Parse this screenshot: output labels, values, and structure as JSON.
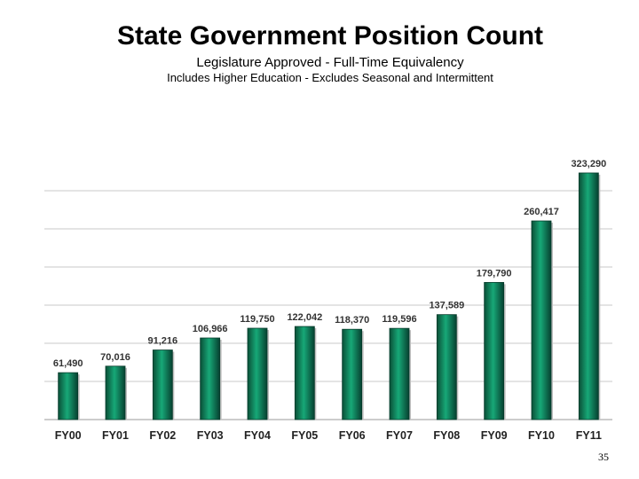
{
  "chart_data": {
    "type": "bar",
    "title": "State Government Position Count",
    "subtitle": "Legislature Approved  -  Full-Time Equivalency",
    "note": "Includes Higher Education  -  Excludes Seasonal and Intermittent",
    "categories": [
      "FY00",
      "FY01",
      "FY02",
      "FY03",
      "FY04",
      "FY05",
      "FY06",
      "FY07",
      "FY08",
      "FY09",
      "FY10",
      "FY11"
    ],
    "values": [
      61490,
      70016,
      91216,
      106966,
      119750,
      122042,
      118370,
      119596,
      137589,
      179790,
      260417,
      323290
    ],
    "value_labels": [
      "61,490",
      "70,016",
      "91,216",
      "106,966",
      "119,750",
      "122,042",
      "118,370",
      "119,596",
      "137,589",
      "179,790",
      "260,417",
      "323,290"
    ],
    "ylim": [
      0,
      350000
    ],
    "grid": true,
    "bar_color": "#0f7e58"
  },
  "page_number": "35"
}
